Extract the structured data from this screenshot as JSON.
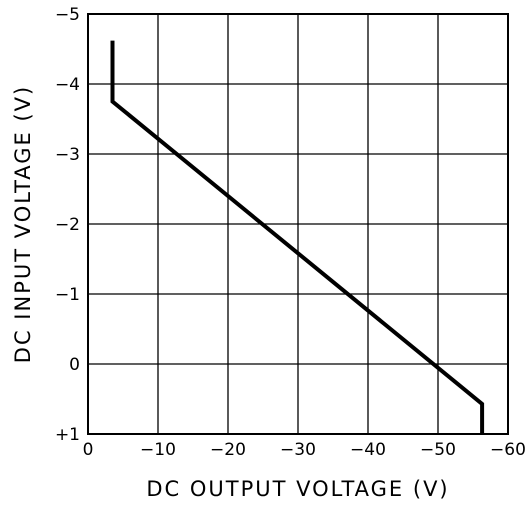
{
  "chart_data": {
    "type": "line",
    "xlabel": "DC OUTPUT VOLTAGE (V)",
    "ylabel": "DC INPUT VOLTAGE (V)",
    "xlim": [
      0,
      -60
    ],
    "ylim": [
      1,
      -5
    ],
    "x_ticks": [
      "0",
      "−10",
      "−20",
      "−30",
      "−40",
      "−50",
      "−60"
    ],
    "y_ticks": [
      "−5",
      "−4",
      "−3",
      "−2",
      "−1",
      "0",
      "+1"
    ],
    "x_tick_values": [
      0,
      -10,
      -20,
      -30,
      -40,
      -50,
      -60
    ],
    "y_tick_values": [
      -5,
      -4,
      -3,
      -2,
      -1,
      0,
      1
    ],
    "grid": true,
    "series": [
      {
        "x": [
          -3.5,
          -3.5,
          -56.3,
          -56.3
        ],
        "y": [
          -4.62,
          -3.75,
          0.57,
          1.0
        ]
      }
    ]
  }
}
